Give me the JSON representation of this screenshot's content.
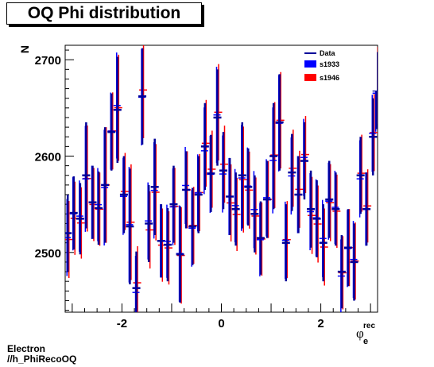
{
  "canvas": {
    "title": "OQ Phi distribution",
    "footer_line1": "Electron",
    "footer_line2": "//h_PhiRecoOQ"
  },
  "chart_data": {
    "type": "scatter",
    "title": "OQ Phi distribution",
    "ylabel": "N",
    "xlabel_base": "φ",
    "xlabel_sub": "e",
    "xlabel_sup": "rec",
    "xlim": [
      -3.1416,
      3.1416
    ],
    "ylim": [
      2438,
      2715
    ],
    "xticks": [
      -2,
      0,
      2
    ],
    "yticks": [
      2500,
      2600,
      2700
    ],
    "legend_position": "top-right",
    "series": [
      {
        "name": "Data",
        "color": "#000099"
      },
      {
        "name": "s1933",
        "color": "#0000ff"
      },
      {
        "name": "s1946",
        "color": "#ff0000"
      }
    ],
    "data_points": [
      {
        "x": -3.09,
        "y": 2520,
        "err": 40
      },
      {
        "x": -2.97,
        "y": 2541,
        "err": 38
      },
      {
        "x": -2.84,
        "y": 2535,
        "err": 37
      },
      {
        "x": -2.72,
        "y": 2580,
        "err": 55
      },
      {
        "x": -2.59,
        "y": 2552,
        "err": 38
      },
      {
        "x": -2.47,
        "y": 2546,
        "err": 38
      },
      {
        "x": -2.34,
        "y": 2570,
        "err": 60
      },
      {
        "x": -2.21,
        "y": 2625,
        "err": 40
      },
      {
        "x": -2.09,
        "y": 2648,
        "err": 55
      },
      {
        "x": -1.96,
        "y": 2560,
        "err": 40
      },
      {
        "x": -1.84,
        "y": 2527,
        "err": 60
      },
      {
        "x": -1.71,
        "y": 2463,
        "err": 38
      },
      {
        "x": -1.59,
        "y": 2662,
        "err": 50
      },
      {
        "x": -1.46,
        "y": 2530,
        "err": 40
      },
      {
        "x": -1.34,
        "y": 2568,
        "err": 50
      },
      {
        "x": -1.21,
        "y": 2512,
        "err": 38
      },
      {
        "x": -1.08,
        "y": 2508,
        "err": 38
      },
      {
        "x": -0.96,
        "y": 2550,
        "err": 40
      },
      {
        "x": -0.83,
        "y": 2498,
        "err": 50
      },
      {
        "x": -0.71,
        "y": 2565,
        "err": 40
      },
      {
        "x": -0.58,
        "y": 2527,
        "err": 40
      },
      {
        "x": -0.46,
        "y": 2560,
        "err": 40
      },
      {
        "x": -0.33,
        "y": 2610,
        "err": 45
      },
      {
        "x": -0.21,
        "y": 2582,
        "err": 40
      },
      {
        "x": -0.08,
        "y": 2640,
        "err": 50
      },
      {
        "x": 0.04,
        "y": 2585,
        "err": 40
      },
      {
        "x": 0.17,
        "y": 2558,
        "err": 40
      },
      {
        "x": 0.29,
        "y": 2545,
        "err": 38
      },
      {
        "x": 0.42,
        "y": 2580,
        "err": 55
      },
      {
        "x": 0.54,
        "y": 2568,
        "err": 40
      },
      {
        "x": 0.67,
        "y": 2540,
        "err": 40
      },
      {
        "x": 0.79,
        "y": 2515,
        "err": 38
      },
      {
        "x": 0.92,
        "y": 2555,
        "err": 40
      },
      {
        "x": 1.05,
        "y": 2600,
        "err": 55
      },
      {
        "x": 1.17,
        "y": 2635,
        "err": 50
      },
      {
        "x": 1.3,
        "y": 2510,
        "err": 40
      },
      {
        "x": 1.42,
        "y": 2583,
        "err": 40
      },
      {
        "x": 1.55,
        "y": 2560,
        "err": 40
      },
      {
        "x": 1.67,
        "y": 2595,
        "err": 40
      },
      {
        "x": 1.8,
        "y": 2545,
        "err": 40
      },
      {
        "x": 1.92,
        "y": 2535,
        "err": 40
      },
      {
        "x": 2.05,
        "y": 2510,
        "err": 40
      },
      {
        "x": 2.17,
        "y": 2555,
        "err": 40
      },
      {
        "x": 2.3,
        "y": 2545,
        "err": 38
      },
      {
        "x": 2.42,
        "y": 2480,
        "err": 38
      },
      {
        "x": 2.55,
        "y": 2505,
        "err": 40
      },
      {
        "x": 2.67,
        "y": 2490,
        "err": 40
      },
      {
        "x": 2.8,
        "y": 2580,
        "err": 40
      },
      {
        "x": 2.92,
        "y": 2545,
        "err": 38
      },
      {
        "x": 3.05,
        "y": 2620,
        "err": 40
      },
      {
        "x": 3.12,
        "y": 2668,
        "err": 40
      }
    ]
  }
}
